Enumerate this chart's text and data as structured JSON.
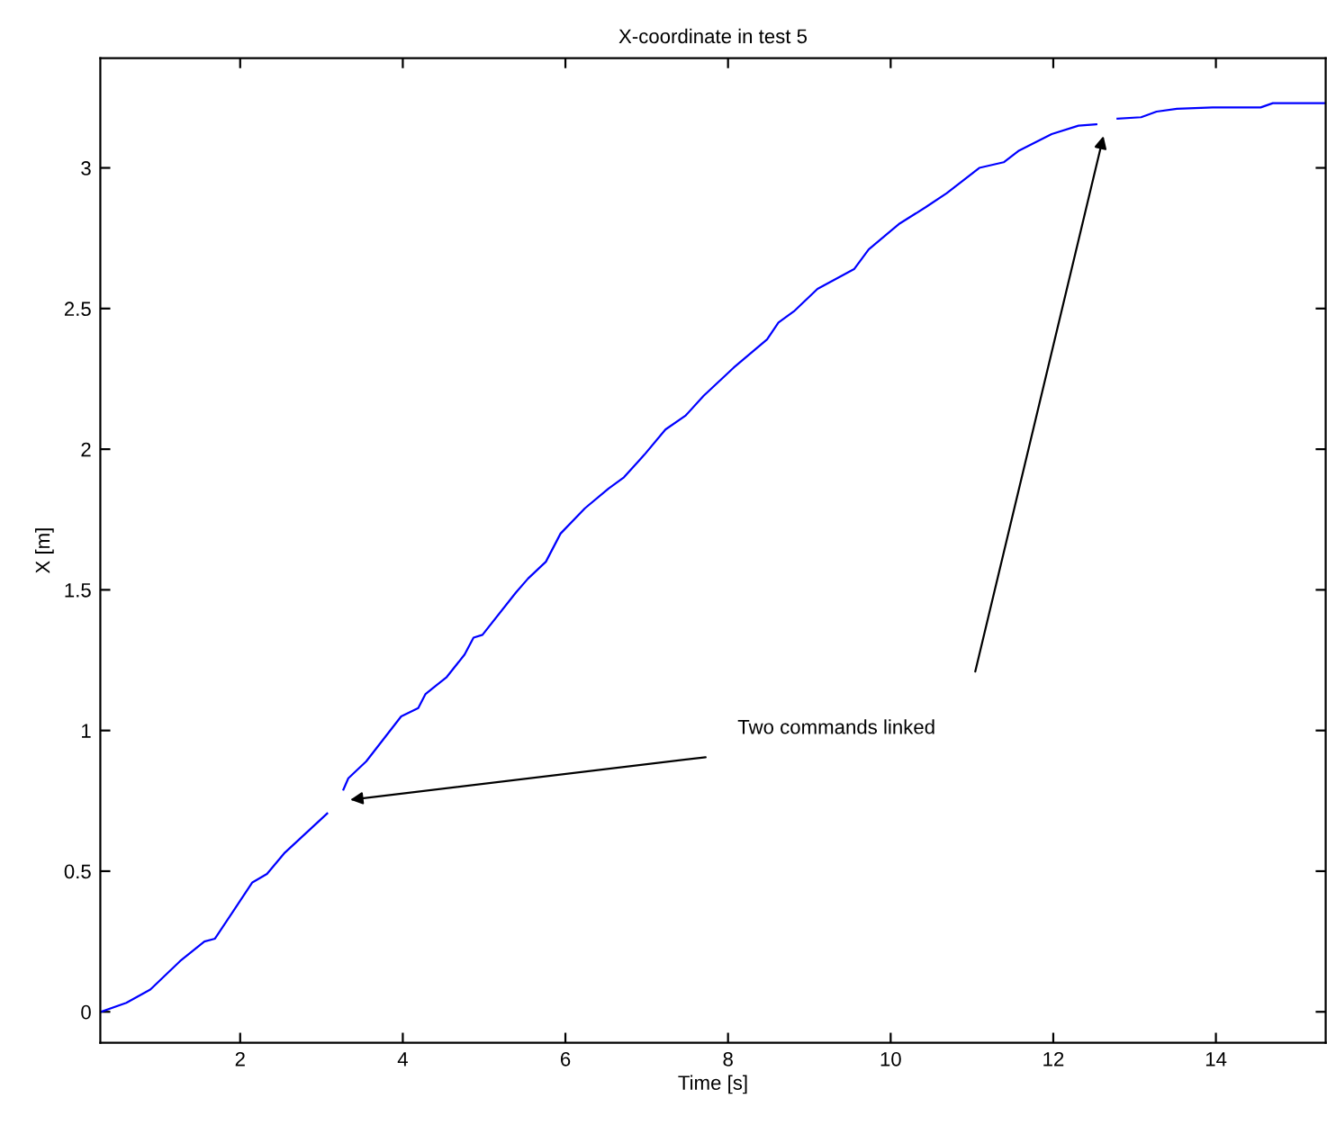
{
  "chart_data": {
    "type": "line",
    "title": "X-coordinate in test 5",
    "xlabel": "Time [s]",
    "ylabel": "X [m]",
    "annotations": [
      "Two commands linked"
    ],
    "x": [
      0.285,
      0.6,
      0.895,
      1.26,
      1.56,
      1.69,
      2.15,
      2.33,
      2.55,
      3.07,
      3.17,
      3.27,
      3.33,
      3.55,
      3.98,
      4.19,
      4.28,
      4.54,
      4.76,
      4.87,
      4.98,
      5.39,
      5.54,
      5.76,
      5.94,
      6.24,
      6.53,
      6.72,
      6.97,
      7.23,
      7.48,
      7.7,
      8.07,
      8.48,
      8.62,
      8.81,
      9.1,
      9.55,
      9.73,
      10.1,
      10.43,
      10.69,
      11.09,
      11.39,
      11.57,
      11.98,
      12.31,
      12.53,
      12.66,
      12.79,
      13.08,
      13.27,
      13.52,
      13.96,
      14.55,
      14.7,
      15.34
    ],
    "series": [
      {
        "color": "#0000ff",
        "values": [
          0,
          0.032,
          0.079,
          0.18,
          0.25,
          0.26,
          0.46,
          0.49,
          0.566,
          0.705,
          null,
          0.79,
          0.83,
          0.89,
          1.05,
          1.08,
          1.13,
          1.19,
          1.27,
          1.33,
          1.34,
          1.49,
          1.54,
          1.6,
          1.7,
          1.79,
          1.86,
          1.9,
          1.98,
          2.07,
          2.12,
          2.19,
          2.29,
          2.39,
          2.45,
          2.49,
          2.57,
          2.64,
          2.71,
          2.8,
          2.86,
          2.91,
          3.0,
          3.02,
          3.06,
          3.12,
          3.15,
          3.155,
          null,
          3.175,
          3.18,
          3.2,
          3.21,
          3.215,
          3.215,
          3.23,
          3.23
        ]
      }
    ],
    "xlim": [
      0.28,
      15.35
    ],
    "ylim": [
      -0.11,
      3.39
    ],
    "xticks": [
      2,
      4,
      6,
      8,
      10,
      12,
      14
    ],
    "yticks": [
      0,
      0.5,
      1,
      1.5,
      2,
      2.5,
      3
    ],
    "grid": false,
    "legend": false,
    "marker": "none",
    "line_style": "solid"
  }
}
